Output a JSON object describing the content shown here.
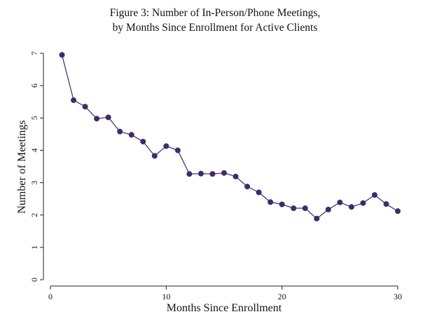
{
  "chart_data": {
    "type": "line",
    "title": "Figure 3: Number of In-Person/Phone Meetings,",
    "subtitle": "by Months Since Enrollment for Active Clients",
    "xlabel": "Months Since Enrollment",
    "ylabel": "Number of Meetings",
    "xlim": [
      0,
      30
    ],
    "ylim": [
      0,
      7
    ],
    "xticks": [
      0,
      10,
      20,
      30
    ],
    "yticks": [
      0,
      1,
      2,
      3,
      4,
      5,
      6,
      7
    ],
    "grid": false,
    "colors": {
      "series": "#3f2a6e",
      "axis": "#222222"
    },
    "x": [
      1,
      2,
      3,
      4,
      5,
      6,
      7,
      8,
      9,
      10,
      11,
      12,
      13,
      14,
      15,
      16,
      17,
      18,
      19,
      20,
      21,
      22,
      23,
      24,
      25,
      26,
      27,
      28,
      29,
      30
    ],
    "series": [
      {
        "name": "Number of Meetings",
        "values": [
          6.95,
          5.55,
          5.35,
          4.98,
          5.02,
          4.58,
          4.48,
          4.27,
          3.83,
          4.13,
          4.0,
          3.27,
          3.28,
          3.27,
          3.3,
          3.19,
          2.88,
          2.7,
          2.4,
          2.33,
          2.21,
          2.21,
          1.89,
          2.17,
          2.39,
          2.25,
          2.37,
          2.62,
          2.34,
          2.12
        ]
      }
    ]
  }
}
